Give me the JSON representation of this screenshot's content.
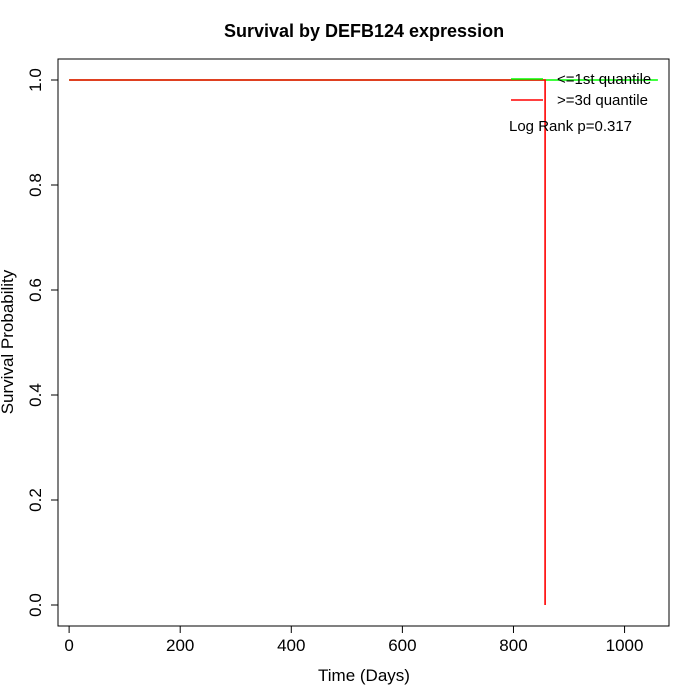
{
  "chart_data": {
    "type": "line",
    "title": "Survival by DEFB124 expression",
    "xlabel": "Time (Days)",
    "ylabel": "Survival Probability",
    "xlim": [
      -20,
      1080
    ],
    "ylim": [
      -0.04,
      1.04
    ],
    "xticks": [
      0,
      200,
      400,
      600,
      800,
      1000
    ],
    "yticks": [
      0.0,
      0.2,
      0.4,
      0.6,
      0.8,
      1.0
    ],
    "xtick_labels": [
      "0",
      "200",
      "400",
      "600",
      "800",
      "1000"
    ],
    "ytick_labels": [
      "0.0",
      "0.2",
      "0.4",
      "0.6",
      "0.8",
      "1.0"
    ],
    "grid": false,
    "legend_position": "top-right",
    "series": [
      {
        "name": "<=1st quantile",
        "color": "#00ff00",
        "x": [
          0,
          1060
        ],
        "y": [
          1.0,
          1.0
        ]
      },
      {
        "name": ">=3d quantile",
        "color": "#ff0000",
        "x": [
          0,
          857,
          857
        ],
        "y": [
          1.0,
          1.0,
          0.0
        ]
      }
    ],
    "annotation": "Log Rank p=0.317"
  }
}
